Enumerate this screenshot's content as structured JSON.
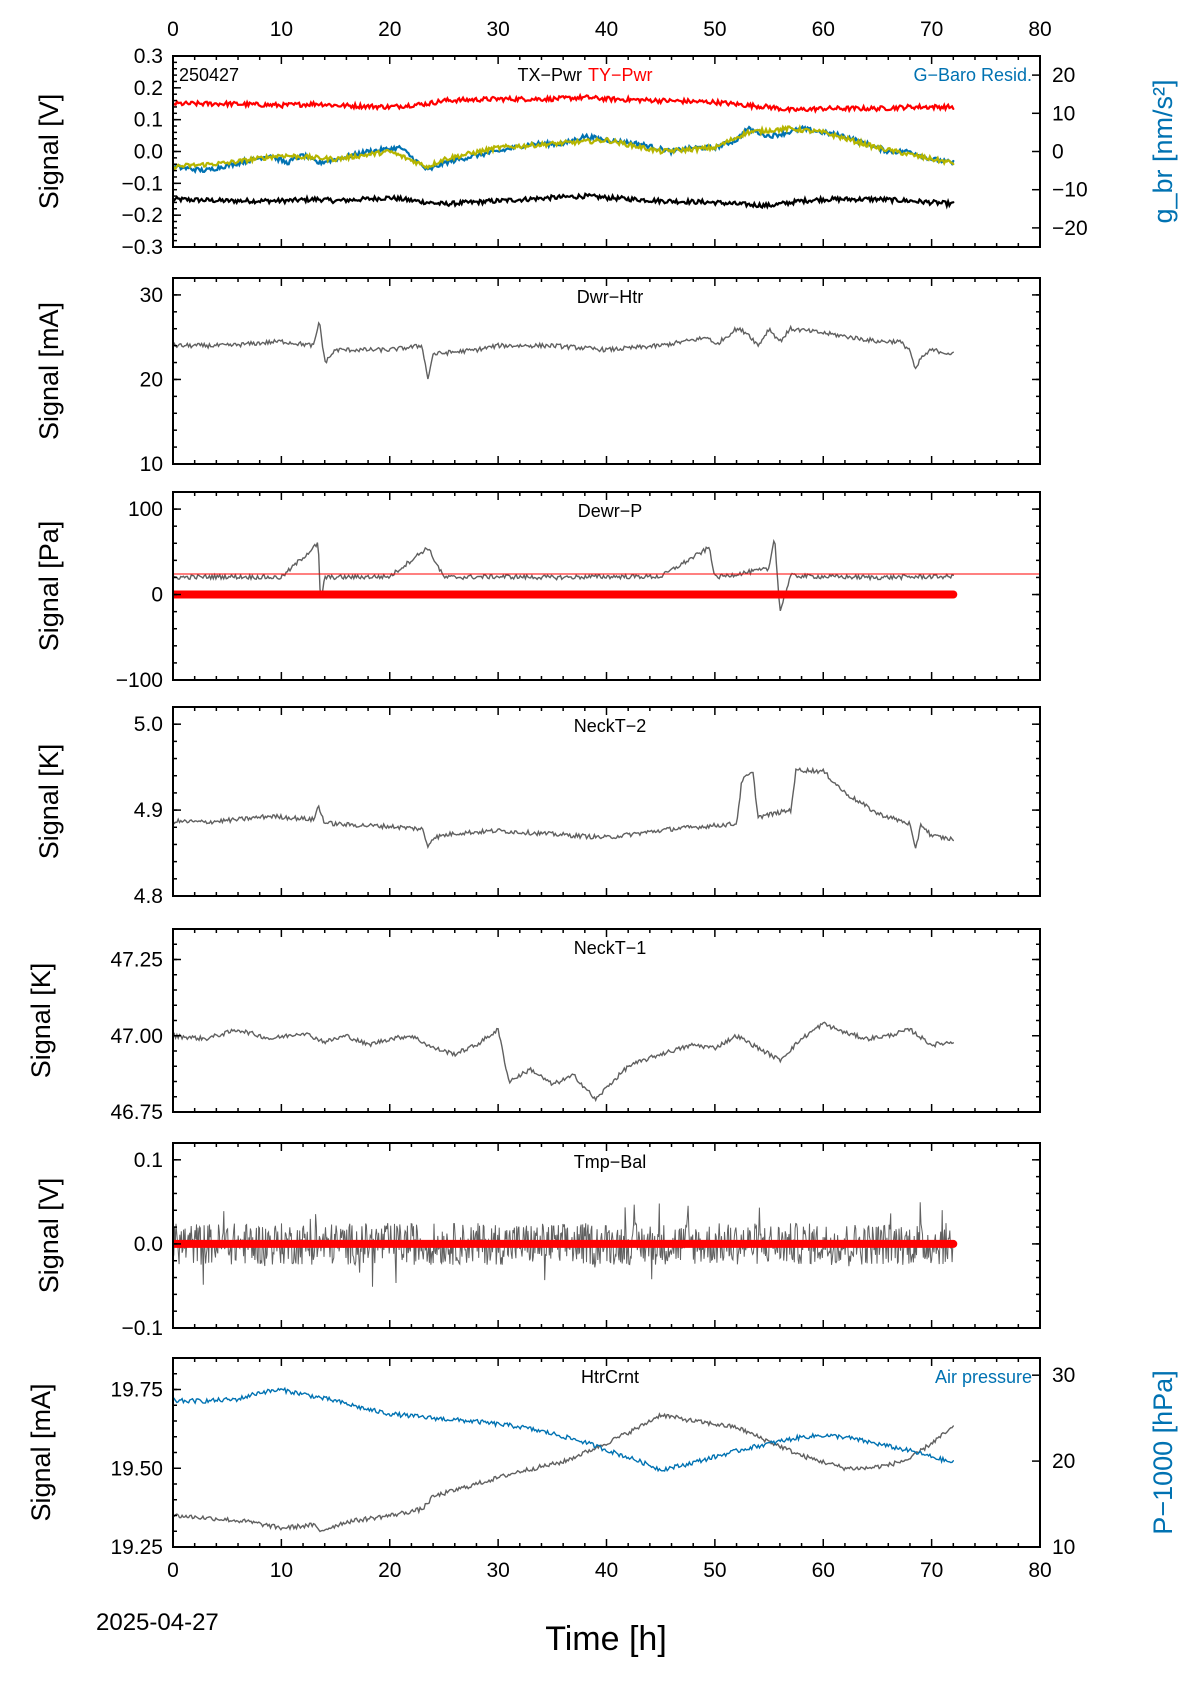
{
  "chart_data": {
    "type": "line",
    "date": "2025-04-27",
    "xlabel": "Time [h]",
    "xlim": [
      0,
      80
    ],
    "xticks": [
      0,
      10,
      20,
      30,
      40,
      50,
      60,
      70,
      80
    ],
    "top_xticks": [
      0,
      10,
      20,
      30,
      40,
      50,
      60,
      70,
      80
    ],
    "colors": {
      "gray": "#606060",
      "red": "#ff0000",
      "blue": "#0072b2",
      "black": "#000000",
      "olive": "#b5b500"
    },
    "panels": [
      {
        "id": "pwr",
        "tag": "250427",
        "title_left": "TX−Pwr",
        "title_right": "TY−Pwr",
        "right_title": "G−Baro Resid.",
        "ylabel": "Signal [V]",
        "ylim": [
          -0.3,
          0.3
        ],
        "yticks": [
          "0.3",
          "0.2",
          "0.1",
          "0.0",
          "−0.1",
          "−0.2",
          "−0.3"
        ],
        "y2label": "g_br [nm/s²]",
        "y2lim": [
          -25,
          25
        ],
        "y2ticks": [
          "20",
          "10",
          "0",
          "−10",
          "−20"
        ],
        "series": [
          {
            "name": "TX−Pwr",
            "color": "black",
            "x": [
              0,
              5,
              10,
              13.4,
              15,
              20,
              23.5,
              25,
              30,
              35,
              38,
              40,
              45,
              50,
              52,
              55,
              58,
              60,
              65,
              68,
              70,
              72
            ],
            "y": [
              -0.15,
              -0.155,
              -0.155,
              -0.15,
              -0.155,
              -0.145,
              -0.16,
              -0.165,
              -0.155,
              -0.145,
              -0.14,
              -0.145,
              -0.155,
              -0.16,
              -0.165,
              -0.17,
              -0.155,
              -0.15,
              -0.15,
              -0.155,
              -0.16,
              -0.165
            ]
          },
          {
            "name": "TY−Pwr",
            "color": "red",
            "x": [
              0,
              5,
              10,
              13.4,
              15,
              20,
              23.5,
              25,
              30,
              35,
              38,
              40,
              45,
              50,
              53,
              55,
              57,
              60,
              65,
              68,
              70,
              72
            ],
            "y": [
              0.15,
              0.15,
              0.145,
              0.15,
              0.145,
              0.14,
              0.15,
              0.16,
              0.165,
              0.165,
              0.17,
              0.165,
              0.16,
              0.155,
              0.145,
              0.14,
              0.13,
              0.135,
              0.135,
              0.14,
              0.14,
              0.14
            ]
          },
          {
            "name": "G−Baro Resid.",
            "color": "blue",
            "axis": "right",
            "x": [
              0,
              3,
              6,
              9,
              10.5,
              12,
              13.4,
              15,
              18,
              21,
              23.5,
              25,
              28,
              30,
              33,
              36,
              38,
              40,
              43,
              46,
              48,
              50,
              52,
              53,
              55,
              56.8,
              58,
              60,
              62,
              64,
              66,
              68,
              70,
              72
            ],
            "y": [
              -4,
              -5,
              -3,
              -1,
              -3,
              -1,
              -3,
              -2,
              0,
              1,
              -5,
              -3,
              -1,
              0,
              2,
              2,
              4,
              3,
              2,
              0,
              1,
              1,
              3,
              6,
              4,
              5,
              6,
              5,
              4,
              2,
              0,
              0,
              -2,
              -3
            ]
          },
          {
            "name": "",
            "color": "olive",
            "axis": "right",
            "x": [
              0,
              5,
              10,
              15,
              20,
              23.5,
              25,
              30,
              35,
              40,
              45,
              50,
              53,
              56.8,
              60,
              65,
              70,
              72
            ],
            "y": [
              -4,
              -3,
              -1,
              -2,
              0,
              -4,
              -2,
              1,
              2,
              3,
              0,
              1,
              5,
              6,
              5,
              1,
              -2,
              -3
            ]
          }
        ]
      },
      {
        "id": "dwrhtr",
        "title": "Dwr−Htr",
        "ylabel": "Signal [mA]",
        "ylim": [
          10,
          32
        ],
        "yticks": [
          "30",
          "20",
          "10"
        ],
        "series": [
          {
            "name": "Dwr−Htr",
            "color": "gray",
            "x": [
              0,
              5,
              10,
              13,
              13.5,
              14,
              15,
              20,
              23,
              23.5,
              24,
              28,
              30,
              35,
              40,
              45,
              49.5,
              50,
              52,
              53,
              54,
              55,
              56,
              57,
              60,
              65,
              67,
              68,
              68.5,
              69,
              70,
              72
            ],
            "y": [
              24,
              24,
              24.5,
              24,
              27,
              22,
              23.5,
              23.5,
              24,
              20,
              23,
              23.5,
              24,
              24,
              23.5,
              24,
              25,
              24,
              26,
              25.5,
              24,
              26,
              24.5,
              26,
              25.5,
              24.5,
              24.5,
              23.5,
              21,
              22.5,
              23.5,
              23
            ]
          }
        ]
      },
      {
        "id": "dewrp",
        "title": "Dewr−P",
        "ylabel": "Signal [Pa]",
        "ylim": [
          -100,
          120
        ],
        "yticks": [
          "100",
          "0",
          "−100"
        ],
        "series": [
          {
            "name": "Dewr−P",
            "color": "gray",
            "x": [
              0,
              5,
              10,
              13.4,
              13.6,
              14,
              20,
              23.5,
              25,
              30,
              35,
              40,
              45,
              49.5,
              50,
              55,
              55.5,
              56,
              57,
              60,
              65,
              70,
              72
            ],
            "y": [
              20,
              21,
              20,
              60,
              -10,
              20,
              21,
              55,
              20,
              21,
              20,
              21,
              21,
              55,
              20,
              30,
              70,
              -20,
              22,
              21,
              20,
              21,
              21
            ]
          },
          {
            "name": "",
            "color": "red",
            "x": [
              0,
              72
            ],
            "y": [
              0,
              0
            ]
          },
          {
            "name": "",
            "color": "red",
            "x": [
              0,
              80
            ],
            "y": [
              24,
              24
            ]
          }
        ]
      },
      {
        "id": "neckt2",
        "title": "NeckT−2",
        "ylabel": "Signal [K]",
        "ylim": [
          4.8,
          5.02
        ],
        "yticks": [
          "5.0",
          "4.9",
          "4.8"
        ],
        "series": [
          {
            "name": "NeckT−2",
            "color": "gray",
            "x": [
              0,
              3,
              6,
              9,
              10,
              13,
              13.4,
              14,
              16,
              20,
              23,
              23.5,
              24,
              26,
              30,
              35,
              40,
              43,
              46,
              50,
              52,
              52.5,
              53.5,
              54,
              57,
              57.5,
              60,
              62,
              65,
              68,
              68.5,
              69,
              70,
              72
            ],
            "y": [
              4.887,
              4.886,
              4.889,
              4.893,
              4.892,
              4.889,
              4.905,
              4.885,
              4.883,
              4.881,
              4.878,
              4.858,
              4.868,
              4.873,
              4.876,
              4.872,
              4.868,
              4.873,
              4.878,
              4.882,
              4.884,
              4.935,
              4.944,
              4.892,
              4.9,
              4.947,
              4.945,
              4.92,
              4.896,
              4.884,
              4.852,
              4.884,
              4.87,
              4.866
            ]
          }
        ]
      },
      {
        "id": "neckt1",
        "title": "NeckT−1",
        "ylabel": "Signal [K]",
        "ylim": [
          46.75,
          47.35
        ],
        "yticks": [
          "47.25",
          "47.00",
          "46.75"
        ],
        "series": [
          {
            "name": "NeckT−1",
            "color": "gray",
            "x": [
              0,
              3,
              6,
              9,
              12,
              14,
              16,
              18,
              20,
              22,
              24,
              26,
              28,
              30,
              31,
              33,
              35,
              37,
              39,
              40,
              42,
              45,
              48,
              50,
              52,
              54,
              56,
              58,
              60,
              62,
              64,
              66,
              68,
              70,
              72
            ],
            "y": [
              47.0,
              46.99,
              47.02,
              46.99,
              47.01,
              46.98,
              47.0,
              46.97,
              46.99,
              47.0,
              46.96,
              46.94,
              46.97,
              47.02,
              46.85,
              46.89,
              46.84,
              46.87,
              46.79,
              46.83,
              46.9,
              46.94,
              46.97,
              46.96,
              47.0,
              46.96,
              46.92,
              46.99,
              47.04,
              47.01,
              46.99,
              47.0,
              47.02,
              46.97,
              46.98
            ]
          }
        ]
      },
      {
        "id": "tmpbal",
        "title": "Tmp−Bal",
        "ylabel": "Signal [V]",
        "ylim": [
          -0.1,
          0.12
        ],
        "yticks": [
          "0.1",
          "0.0",
          "−0.1"
        ],
        "series": [
          {
            "name": "Tmp−Bal",
            "color": "gray",
            "noise": 0.025,
            "x": [
              0,
              72
            ],
            "y": [
              0,
              0
            ]
          },
          {
            "name": "",
            "color": "red",
            "x": [
              0,
              72
            ],
            "y": [
              0,
              0
            ]
          }
        ]
      },
      {
        "id": "htrcrnt",
        "title": "HtrCrnt",
        "right_title": "Air pressure",
        "ylabel": "Signal [mA]",
        "ylim": [
          19.25,
          19.85
        ],
        "yticks": [
          "19.75",
          "19.50",
          "19.25"
        ],
        "y2label": "P−1000 [hPa]",
        "y2lim": [
          10,
          32
        ],
        "y2ticks": [
          "30",
          "20",
          "10"
        ],
        "series": [
          {
            "name": "HtrCrnt",
            "color": "gray",
            "x": [
              0,
              4,
              7,
              10,
              13,
              13.5,
              16,
              20,
              23,
              24,
              28,
              32,
              36,
              40,
              43,
              45,
              48,
              50,
              52,
              54,
              56,
              58,
              60,
              62,
              64,
              66,
              68,
              70,
              72
            ],
            "y": [
              19.35,
              19.34,
              19.33,
              19.31,
              19.32,
              19.3,
              19.33,
              19.35,
              19.37,
              19.41,
              19.45,
              19.49,
              19.52,
              19.58,
              19.63,
              19.67,
              19.65,
              19.64,
              19.63,
              19.6,
              19.57,
              19.54,
              19.52,
              19.5,
              19.5,
              19.51,
              19.53,
              19.58,
              19.63
            ]
          },
          {
            "name": "Air pressure",
            "color": "blue",
            "axis": "right",
            "x": [
              0,
              3,
              6,
              8,
              10,
              12,
              15,
              18,
              20,
              24,
              28,
              32,
              35,
              38,
              40,
              43,
              45,
              47,
              50,
              53,
              56,
              58,
              60,
              62,
              65,
              68,
              70,
              72
            ],
            "y": [
              27,
              27,
              27.2,
              28,
              28.3,
              27.8,
              27,
              26,
              25.5,
              25,
              24.6,
              24,
              23.2,
              22.2,
              21.3,
              20,
              19,
              19.5,
              20.5,
              21.5,
              22.3,
              22.8,
              23,
              22.8,
              22,
              21.2,
              20.5,
              19.8
            ]
          }
        ]
      }
    ]
  }
}
